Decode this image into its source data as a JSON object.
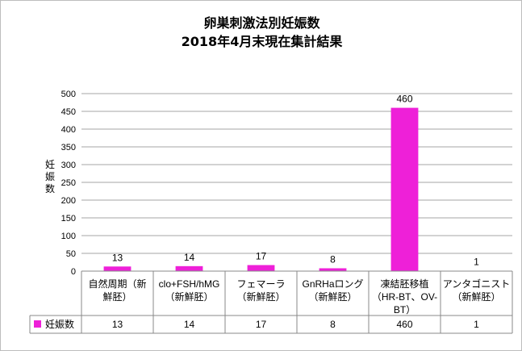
{
  "title_line1": "卵巣刺激法別妊娠数",
  "title_line2": "2018年4月末現在集計結果",
  "chart_data": {
    "type": "bar",
    "ylabel": "妊娠数",
    "ylim": [
      0,
      500
    ],
    "yticks": [
      0,
      50,
      100,
      150,
      200,
      250,
      300,
      350,
      400,
      450,
      500
    ],
    "grid": true,
    "categories": [
      [
        "自然周期（新",
        "鮮胚）"
      ],
      [
        "clo+FSH/hMG",
        "（新鮮胚）"
      ],
      [
        "フェマーラ",
        "（新鮮胚）"
      ],
      [
        "GnRHaロング",
        "（新鮮胚）"
      ],
      [
        "凍結胚移植",
        "（HR-BT、OV-",
        "BT）"
      ],
      [
        "アンタゴニスト",
        "（新鮮胚）"
      ]
    ],
    "series": [
      {
        "name": "妊娠数",
        "values": [
          13,
          14,
          17,
          8,
          460,
          1
        ]
      }
    ],
    "data_labels": [
      "13",
      "14",
      "17",
      "8",
      "460",
      "1"
    ],
    "table_values": [
      "13",
      "14",
      "17",
      "8",
      "460",
      "1"
    ],
    "bar_color": "#ee20d8",
    "grid_color": "#a6a6a6"
  }
}
